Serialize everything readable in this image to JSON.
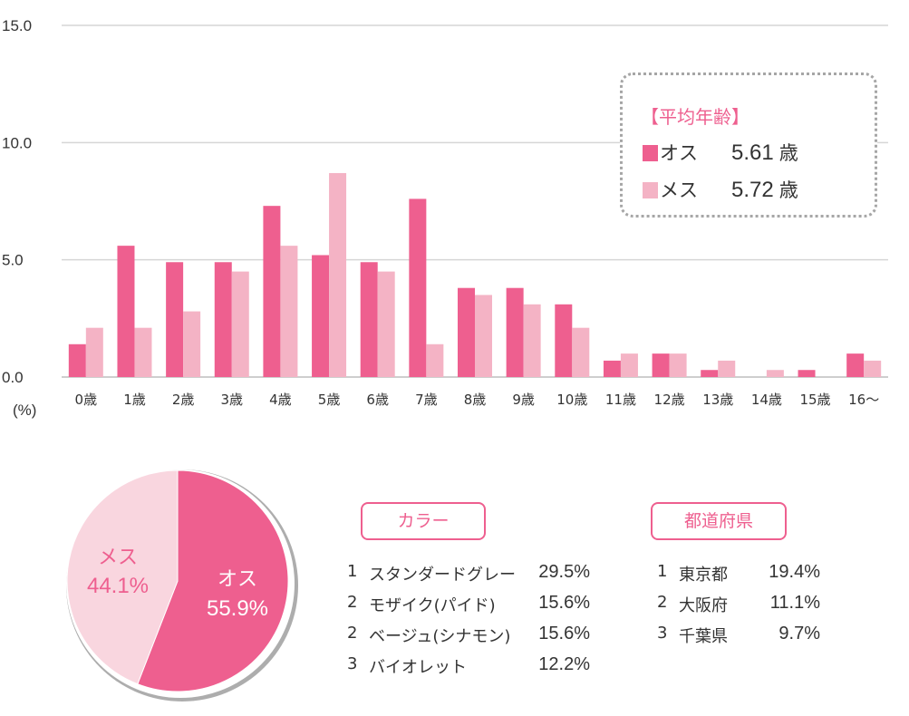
{
  "chart_data": [
    {
      "type": "bar",
      "categories": [
        "0歳",
        "1歳",
        "2歳",
        "3歳",
        "4歳",
        "5歳",
        "6歳",
        "7歳",
        "8歳",
        "9歳",
        "10歳",
        "11歳",
        "12歳",
        "13歳",
        "14歳",
        "15歳",
        "16～"
      ],
      "series": [
        {
          "name": "オス",
          "color": "#ee5f8f",
          "values": [
            1.4,
            5.6,
            4.9,
            4.9,
            7.3,
            5.2,
            4.9,
            7.6,
            3.8,
            3.8,
            3.1,
            0.7,
            1.0,
            0.3,
            0.0,
            0.3,
            1.0
          ]
        },
        {
          "name": "メス",
          "color": "#f4b3c5",
          "values": [
            2.1,
            2.1,
            2.8,
            4.5,
            5.6,
            8.7,
            4.5,
            1.4,
            3.5,
            3.1,
            2.1,
            1.0,
            1.0,
            0.7,
            0.3,
            0.0,
            0.7
          ]
        }
      ],
      "yticks": [
        "15.0",
        "10.0",
        "5.0",
        "0.0"
      ],
      "ylim": [
        0,
        15
      ],
      "ylabel": "(%)",
      "grid": true
    },
    {
      "type": "pie",
      "slices": [
        {
          "label": "オス",
          "value": 55.9,
          "display": "55.9%",
          "color": "#ee5f8f"
        },
        {
          "label": "メス",
          "value": 44.1,
          "display": "44.1%",
          "color": "#f9d6df"
        }
      ]
    }
  ],
  "average_age": {
    "title": "【平均年齢】",
    "rows": [
      {
        "label": "オス",
        "value": "5.61",
        "unit": "歳",
        "color": "#ee5f8f"
      },
      {
        "label": "メス",
        "value": "5.72",
        "unit": "歳",
        "color": "#f4b3c5"
      }
    ]
  },
  "color_ranking": {
    "label": "カラー",
    "items": [
      {
        "rank": "1",
        "name": "スタンダードグレー",
        "pct": "29.5%"
      },
      {
        "rank": "2",
        "name": "モザイク(パイド)",
        "pct": "15.6%"
      },
      {
        "rank": "2",
        "name": "ベージュ(シナモン)",
        "pct": "15.6%"
      },
      {
        "rank": "3",
        "name": "バイオレット",
        "pct": "12.2%"
      }
    ]
  },
  "prefecture_ranking": {
    "label": "都道府県",
    "items": [
      {
        "rank": "1",
        "name": "東京都",
        "pct": "19.4%"
      },
      {
        "rank": "2",
        "name": "大阪府",
        "pct": "11.1%"
      },
      {
        "rank": "3",
        "name": "千葉県",
        "pct": "9.7%"
      }
    ]
  }
}
